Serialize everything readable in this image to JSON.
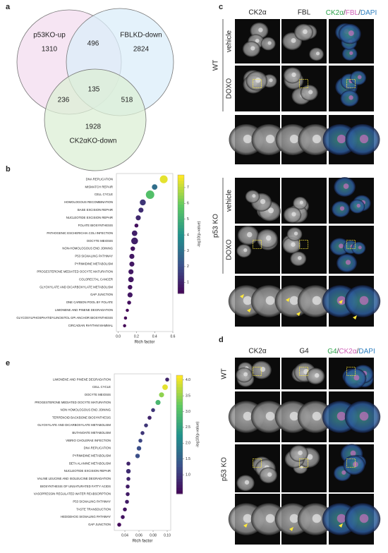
{
  "panel_letters": [
    "a",
    "b",
    "c",
    "d",
    "e"
  ],
  "venn": {
    "sets": [
      {
        "name": "p53KO-up",
        "count": 1310,
        "color": "#f3dcef"
      },
      {
        "name": "FBLKD-down",
        "count": 2824,
        "color": "#dbeefa"
      },
      {
        "name": "CK2αKO-down",
        "count": 1928,
        "color": "#dcefd6"
      }
    ],
    "overlaps": {
      "p53KO-up & FBLKD-down": 496,
      "p53KO-up & CK2αKO-down": 236,
      "FBLKD-down & CK2αKO-down": 518,
      "all": 135
    }
  },
  "panel_c": {
    "columns": [
      "CK2α",
      "FBL"
    ],
    "merge_label": [
      {
        "text": "CK2α",
        "color": "#2ca24a"
      },
      {
        "text": "/",
        "color": "#333333"
      },
      {
        "text": "FBL",
        "color": "#d05fb8"
      },
      {
        "text": "/",
        "color": "#333333"
      },
      {
        "text": "DAPI",
        "color": "#2e7fc0"
      }
    ],
    "groups": [
      {
        "name": "WT",
        "rows": [
          "vehicle",
          "DOXO"
        ]
      },
      {
        "name": "p53 KO",
        "rows": [
          "vehicle",
          "DOXO"
        ]
      }
    ]
  },
  "panel_d": {
    "columns": [
      "CK2α",
      "G4"
    ],
    "merge_label": [
      {
        "text": "G4",
        "color": "#2ca24a"
      },
      {
        "text": "/",
        "color": "#333333"
      },
      {
        "text": "CK2α",
        "color": "#d05fb8"
      },
      {
        "text": "/",
        "color": "#333333"
      },
      {
        "text": "DAPI",
        "color": "#2e7fc0"
      }
    ],
    "groups": [
      "WT",
      "p53 KO"
    ]
  },
  "chart_data": [
    {
      "type": "dotplot",
      "xlabel": "Rich factor",
      "colorbar_label": "-log10(p-value)",
      "categories": [
        "DNA REPLICATION",
        "MISMATCH REPAIR",
        "CELL CYCLE",
        "HOMOLOGOUS RECOMBINATION",
        "BASE EXCISION REPAIR",
        "NUCLEOTIDE EXCISION REPAIR",
        "FOLATE BIOSYNTHESIS",
        "PATHOGENIC ESCHERICHIA COLI INFECTION",
        "OOCYTE MEIOSIS",
        "NON-HOMOLOGOUS END JOINING",
        "P53 SIGNALING PATHWAY",
        "PYRIMIDINE METABOLISM",
        "PROGESTERONE MEDIATED OOCYTE MATURATION",
        "COLORECTAL CANCER",
        "GLYOXYLATE AND DICARBOXYLATE METABOLISM",
        "GAP JUNCTION",
        "ONE CARBON POOL BY FOLATE",
        "LIMONENE AND PINENE DEGRADATION",
        "GLYCOSYLPHOSPHATIDYLINOSITOL GPI ANCHOR BIOSYNTHESIS",
        "CIRCADIAN RHYTHM MAMMAL"
      ],
      "values": [
        0.5,
        0.4,
        0.35,
        0.27,
        0.25,
        0.22,
        0.2,
        0.18,
        0.18,
        0.16,
        0.15,
        0.15,
        0.14,
        0.14,
        0.13,
        0.13,
        0.12,
        0.1,
        0.08,
        0.07
      ],
      "color_values": [
        7.5,
        3.0,
        5.6,
        1.5,
        1.3,
        1.2,
        0.6,
        1.0,
        1.0,
        0.7,
        0.8,
        0.8,
        0.8,
        0.8,
        0.7,
        0.8,
        0.6,
        0.4,
        0.4,
        0.4
      ],
      "sizes": [
        12,
        6,
        14,
        7,
        5,
        5,
        3,
        6,
        9,
        4,
        5,
        5,
        5,
        6,
        4,
        5,
        3,
        2,
        2,
        2
      ],
      "xlim": [
        -0.02,
        0.6
      ],
      "xticks": [
        {
          "value": 0,
          "label": "0.0"
        },
        0.2,
        0.4,
        0.6
      ],
      "clim": [
        0.3,
        7.8
      ],
      "cticks": [
        1,
        2,
        3,
        4,
        5,
        6,
        7
      ]
    },
    {
      "type": "dotplot",
      "xlabel": "Rich factor",
      "colorbar_label": "-log10(p-value)",
      "categories": [
        "LIMONENE AND PINENE DEGRADATION",
        "CELL CYCLE",
        "OOCYTE MEIOSIS",
        "PROGESTERONE MEDIATED OOCYTE MATURATION",
        "NON HOMOLOGOUS END JOINING",
        "TERPENOID BACKBONE BIOSYNTHESIS",
        "GLYOXYLATE AND DICARBOXYLATE METABOLISM",
        "BUTANOATE METABOLISM",
        "VIBRIO CHOLERAE INFECTION",
        "DNA REPLICATION",
        "PYRIMIDINE METABOLISM",
        "BETA ALANINE METABOLISM",
        "NUCLEOTIDE EXCISION REPAIR",
        "VALINE LEUCINE AND ISOLEUCINE DEGRADATION",
        "BIOSYNTHESIS OF UNSATURATED FATTY ACIDS",
        "VASOPRESSIN REGULATED WATER REABSORPTION",
        "P53 SIGNALING PATHWAY",
        "TASTE TRANSDUCTION",
        "HEDGEHOG SIGNALING PATHWAY",
        "GAP JUNCTION"
      ],
      "values": [
        0.1,
        0.097,
        0.092,
        0.087,
        0.08,
        0.075,
        0.07,
        0.065,
        0.062,
        0.06,
        0.058,
        0.045,
        0.045,
        0.045,
        0.044,
        0.044,
        0.043,
        0.04,
        0.037,
        0.032
      ],
      "color_values": [
        0.8,
        4.0,
        3.5,
        2.9,
        1.0,
        0.8,
        1.0,
        1.0,
        1.2,
        1.3,
        1.3,
        0.8,
        0.9,
        0.8,
        0.7,
        0.7,
        0.7,
        0.6,
        0.6,
        0.5
      ],
      "sizes": [
        3,
        6,
        5,
        5,
        3,
        3,
        3,
        3,
        3,
        4,
        4,
        3,
        4,
        3,
        3,
        3,
        3,
        3,
        3,
        3
      ],
      "xlim": [
        0.025,
        0.105
      ],
      "xticks": [
        0.04,
        0.06,
        0.08,
        {
          "value": 0.1,
          "label": "0.10"
        }
      ],
      "clim": [
        0.4,
        4.15
      ],
      "cticks": [
        {
          "value": 1,
          "label": "1.0"
        },
        1.5,
        {
          "value": 2,
          "label": "2.0"
        },
        2.5,
        {
          "value": 3,
          "label": "3.0"
        },
        3.5,
        {
          "value": 4,
          "label": "4.0"
        }
      ]
    }
  ]
}
